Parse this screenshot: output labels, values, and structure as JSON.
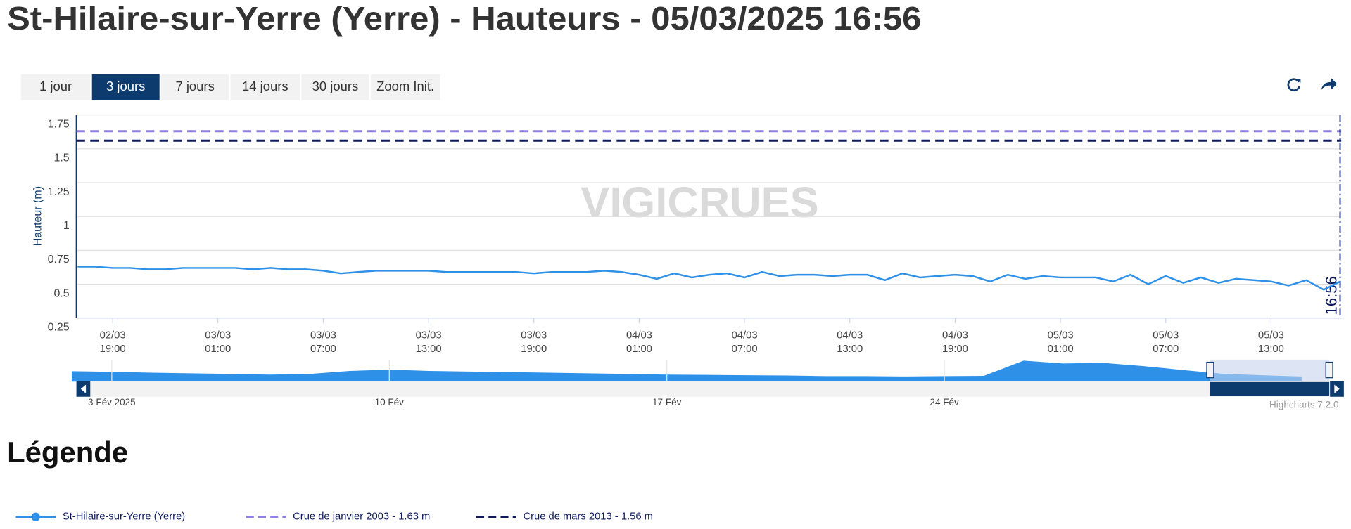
{
  "chart_data": {
    "type": "line",
    "title": "St-Hilaire-sur-Yerre (Yerre) - Hauteurs - 05/03/2025 16:56",
    "range_buttons": [
      "1 jour",
      "3 jours",
      "7 jours",
      "14 jours",
      "30 jours",
      "Zoom Init."
    ],
    "range_selected": 1,
    "y_label": "Hauteur (m)",
    "watermark": "VIGICRUES",
    "ylim": [
      0.25,
      1.75
    ],
    "yticks": [
      0.25,
      0.5,
      0.75,
      1,
      1.25,
      1.5,
      1.75
    ],
    "grid": true,
    "xlim": [
      "2025-03-02T16:56",
      "2025-03-05T17:00"
    ],
    "xticks": [
      {
        "value": "2025-03-02T19:00",
        "date": "02/03",
        "time": "19:00"
      },
      {
        "value": "2025-03-03T01:00",
        "date": "03/03",
        "time": "01:00"
      },
      {
        "value": "2025-03-03T07:00",
        "date": "03/03",
        "time": "07:00"
      },
      {
        "value": "2025-03-03T13:00",
        "date": "03/03",
        "time": "13:00"
      },
      {
        "value": "2025-03-03T19:00",
        "date": "03/03",
        "time": "19:00"
      },
      {
        "value": "2025-03-04T01:00",
        "date": "04/03",
        "time": "01:00"
      },
      {
        "value": "2025-03-04T07:00",
        "date": "04/03",
        "time": "07:00"
      },
      {
        "value": "2025-03-04T13:00",
        "date": "04/03",
        "time": "13:00"
      },
      {
        "value": "2025-03-04T19:00",
        "date": "04/03",
        "time": "19:00"
      },
      {
        "value": "2025-03-05T01:00",
        "date": "05/03",
        "time": "01:00"
      },
      {
        "value": "2025-03-05T07:00",
        "date": "05/03",
        "time": "07:00"
      },
      {
        "value": "2025-03-05T13:00",
        "date": "05/03",
        "time": "13:00"
      }
    ],
    "series": [
      {
        "name": "St-Hilaire-sur-Yerre (Yerre)",
        "color": "#2e90e6",
        "x": [
          "2025-03-02T17:00",
          "2025-03-02T18:00",
          "2025-03-02T19:00",
          "2025-03-02T20:00",
          "2025-03-02T21:00",
          "2025-03-02T22:00",
          "2025-03-02T23:00",
          "2025-03-03T00:00",
          "2025-03-03T01:00",
          "2025-03-03T02:00",
          "2025-03-03T03:00",
          "2025-03-03T04:00",
          "2025-03-03T05:00",
          "2025-03-03T06:00",
          "2025-03-03T07:00",
          "2025-03-03T08:00",
          "2025-03-03T09:00",
          "2025-03-03T10:00",
          "2025-03-03T11:00",
          "2025-03-03T12:00",
          "2025-03-03T13:00",
          "2025-03-03T14:00",
          "2025-03-03T15:00",
          "2025-03-03T16:00",
          "2025-03-03T17:00",
          "2025-03-03T18:00",
          "2025-03-03T19:00",
          "2025-03-03T20:00",
          "2025-03-03T21:00",
          "2025-03-03T22:00",
          "2025-03-03T23:00",
          "2025-03-04T00:00",
          "2025-03-04T01:00",
          "2025-03-04T02:00",
          "2025-03-04T03:00",
          "2025-03-04T04:00",
          "2025-03-04T05:00",
          "2025-03-04T06:00",
          "2025-03-04T07:00",
          "2025-03-04T08:00",
          "2025-03-04T09:00",
          "2025-03-04T10:00",
          "2025-03-04T11:00",
          "2025-03-04T12:00",
          "2025-03-04T13:00",
          "2025-03-04T14:00",
          "2025-03-04T15:00",
          "2025-03-04T16:00",
          "2025-03-04T17:00",
          "2025-03-04T18:00",
          "2025-03-04T19:00",
          "2025-03-04T20:00",
          "2025-03-04T21:00",
          "2025-03-04T22:00",
          "2025-03-04T23:00",
          "2025-03-05T00:00",
          "2025-03-05T01:00",
          "2025-03-05T02:00",
          "2025-03-05T03:00",
          "2025-03-05T04:00",
          "2025-03-05T05:00",
          "2025-03-05T06:00",
          "2025-03-05T07:00",
          "2025-03-05T08:00",
          "2025-03-05T09:00",
          "2025-03-05T10:00",
          "2025-03-05T11:00",
          "2025-03-05T12:00",
          "2025-03-05T13:00",
          "2025-03-05T14:00",
          "2025-03-05T15:00",
          "2025-03-05T16:00",
          "2025-03-05T16:56"
        ],
        "values": [
          0.63,
          0.63,
          0.62,
          0.62,
          0.61,
          0.61,
          0.62,
          0.62,
          0.62,
          0.62,
          0.61,
          0.62,
          0.61,
          0.61,
          0.6,
          0.58,
          0.59,
          0.6,
          0.6,
          0.6,
          0.6,
          0.59,
          0.59,
          0.59,
          0.59,
          0.59,
          0.58,
          0.59,
          0.59,
          0.59,
          0.6,
          0.59,
          0.57,
          0.54,
          0.58,
          0.55,
          0.57,
          0.58,
          0.55,
          0.59,
          0.56,
          0.57,
          0.57,
          0.56,
          0.57,
          0.57,
          0.53,
          0.58,
          0.55,
          0.56,
          0.57,
          0.56,
          0.52,
          0.57,
          0.54,
          0.56,
          0.55,
          0.55,
          0.55,
          0.52,
          0.57,
          0.5,
          0.56,
          0.51,
          0.55,
          0.51,
          0.54,
          0.53,
          0.52,
          0.49,
          0.53,
          0.46,
          0.52
        ]
      }
    ],
    "plot_lines": [
      {
        "name": "Crue de janvier 2003 - 1.63 m",
        "value": 1.63,
        "color": "#8f7fe6"
      },
      {
        "name": "Crue de mars 2013 - 1.56 m",
        "value": 1.56,
        "color": "#0e1a5e"
      }
    ],
    "now_line": {
      "label": "16:56",
      "x": "2025-03-05T16:56"
    },
    "navigator": {
      "type": "area",
      "color": "#2e90e6",
      "xlim": [
        "2025-02-02T12:00",
        "2025-03-05T16:56"
      ],
      "ylim": [
        0.4,
        1.1
      ],
      "x": [
        "2025-02-02",
        "2025-02-03",
        "2025-02-04",
        "2025-02-05",
        "2025-02-06",
        "2025-02-07",
        "2025-02-08",
        "2025-02-09",
        "2025-02-10",
        "2025-02-11",
        "2025-02-12",
        "2025-02-13",
        "2025-02-14",
        "2025-02-15",
        "2025-02-16",
        "2025-02-17",
        "2025-02-18",
        "2025-02-19",
        "2025-02-20",
        "2025-02-21",
        "2025-02-22",
        "2025-02-23",
        "2025-02-24",
        "2025-02-25",
        "2025-02-26",
        "2025-02-27",
        "2025-02-28",
        "2025-03-01",
        "2025-03-02",
        "2025-03-03",
        "2025-03-04",
        "2025-03-05"
      ],
      "values": [
        0.71,
        0.69,
        0.66,
        0.64,
        0.62,
        0.6,
        0.62,
        0.72,
        0.76,
        0.72,
        0.7,
        0.68,
        0.66,
        0.64,
        0.62,
        0.6,
        0.59,
        0.58,
        0.57,
        0.55,
        0.55,
        0.54,
        0.55,
        0.56,
        1.05,
        0.96,
        0.98,
        0.88,
        0.75,
        0.63,
        0.58,
        0.54
      ],
      "xticks": [
        {
          "value": "2025-02-03",
          "label": "3 Fév 2025"
        },
        {
          "value": "2025-02-10",
          "label": "10 Fév"
        },
        {
          "value": "2025-02-17",
          "label": "17 Fév"
        },
        {
          "value": "2025-02-24",
          "label": "24 Fév"
        }
      ]
    },
    "credits": "Highcharts 7.2.0",
    "legend_title": "Légende"
  }
}
